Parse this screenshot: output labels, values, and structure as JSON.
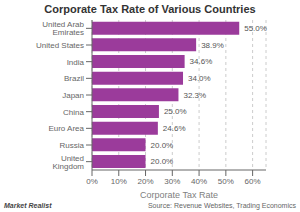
{
  "chart_data": {
    "type": "bar",
    "orientation": "horizontal",
    "title": "Corporate Tax Rate of Various Countries",
    "x_label": "Corporate Tax Rate",
    "categories": [
      "United Kingdom",
      "Russia",
      "Euro Area",
      "China",
      "Japan",
      "Brazil",
      "India",
      "United States",
      "United Arab Emirates"
    ],
    "values": [
      20.0,
      20.0,
      24.6,
      25.0,
      32.3,
      34.0,
      34.6,
      38.9,
      55.0
    ],
    "value_labels": [
      "20.0%",
      "20.0%",
      "24.6%",
      "25.0%",
      "32.3%",
      "34.0%",
      "34.6%",
      "38.9%",
      "55.0%"
    ],
    "data_labels": true,
    "color": "#9B3B9B",
    "xlim": [
      0,
      65
    ],
    "xticks": [
      {
        "value": 0,
        "label": "0%"
      },
      {
        "value": 10,
        "label": "10%"
      },
      {
        "value": 20,
        "label": "20%"
      },
      {
        "value": 30,
        "label": "30%"
      },
      {
        "value": 40,
        "label": "40%"
      },
      {
        "value": 50,
        "label": "50%"
      },
      {
        "value": 60,
        "label": "60%"
      }
    ],
    "grid": true,
    "annotations": [
      "Market Realist",
      "Source: Revenue Websites, Trading Economics"
    ]
  }
}
